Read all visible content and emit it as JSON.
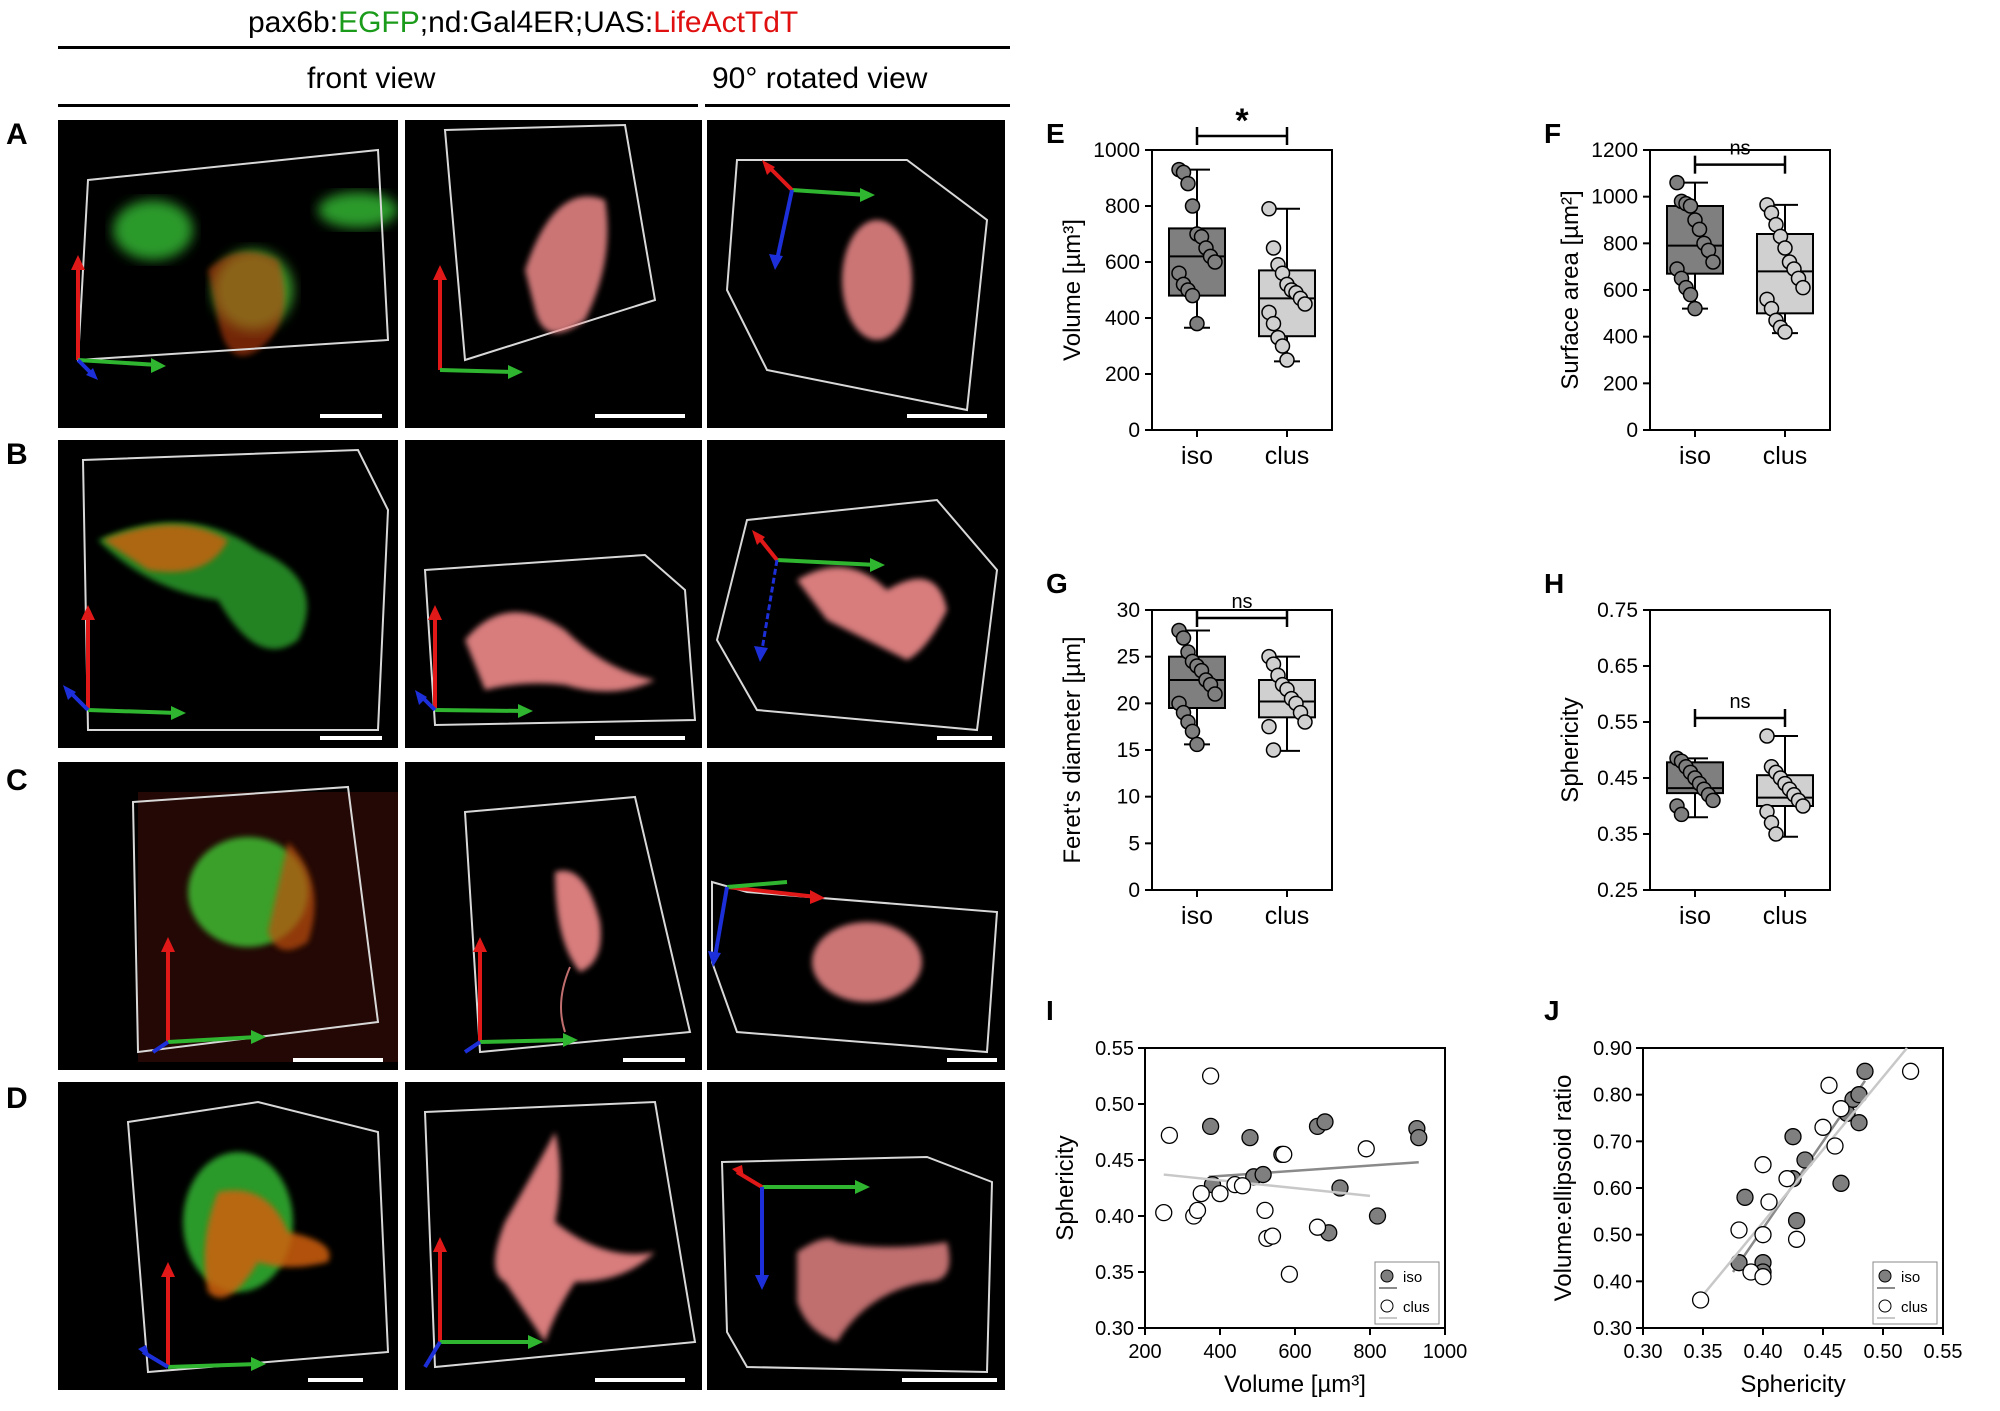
{
  "header": {
    "genotype": {
      "seg1": "pax6b:",
      "seg2": "EGFP",
      "seg3": ";nd:Gal4ER;UAS:",
      "seg4": "LifeActTdT",
      "green_color": "#1a9b1a",
      "red_color": "#e01010"
    },
    "front_view_label": "front view",
    "rotated_view_label": "90° rotated view"
  },
  "rows": [
    {
      "letter": "A"
    },
    {
      "letter": "B"
    },
    {
      "letter": "C"
    },
    {
      "letter": "D"
    }
  ],
  "colors": {
    "iso_fill": "#7f7f7f",
    "clus_fill": "#d0d0d0",
    "axis_red": "#e01818",
    "axis_green": "#2fb52f",
    "axis_blue": "#1c2fd8",
    "egfp_green": "#2a9a2a",
    "tdt_pink": "#f08a8a"
  },
  "chart_data": [
    {
      "letter": "E",
      "type": "box",
      "categories": [
        "iso",
        "clus"
      ],
      "ylabel": "Volume [µm³]",
      "ylim": [
        0,
        1000
      ],
      "yticks": [
        "0",
        "200",
        "400",
        "600",
        "800",
        "1000"
      ],
      "significance": "*",
      "boxes": [
        {
          "q1": 480,
          "median": 620,
          "q3": 720,
          "whisker_low": 365,
          "whisker_high": 930,
          "points": [
            930,
            920,
            880,
            800,
            700,
            690,
            650,
            620,
            600,
            560,
            520,
            500,
            480,
            380
          ]
        },
        {
          "q1": 335,
          "median": 470,
          "q3": 570,
          "whisker_low": 245,
          "whisker_high": 790,
          "points": [
            790,
            650,
            590,
            560,
            520,
            500,
            490,
            470,
            450,
            420,
            380,
            330,
            300,
            250
          ]
        }
      ]
    },
    {
      "letter": "F",
      "type": "box",
      "categories": [
        "iso",
        "clus"
      ],
      "ylabel": "Surface area [µm²]",
      "ylim": [
        0,
        1200
      ],
      "yticks": [
        "0",
        "200",
        "400",
        "600",
        "800",
        "1000",
        "1200"
      ],
      "significance": "ns",
      "boxes": [
        {
          "q1": 670,
          "median": 790,
          "q3": 960,
          "whisker_low": 520,
          "whisker_high": 1060,
          "points": [
            1060,
            980,
            970,
            960,
            900,
            860,
            800,
            770,
            720,
            690,
            650,
            610,
            580,
            520
          ]
        },
        {
          "q1": 500,
          "median": 680,
          "q3": 840,
          "whisker_low": 415,
          "whisker_high": 965,
          "points": [
            965,
            930,
            880,
            830,
            780,
            720,
            690,
            650,
            610,
            560,
            520,
            470,
            440,
            420
          ]
        }
      ]
    },
    {
      "letter": "G",
      "type": "box",
      "categories": [
        "iso",
        "clus"
      ],
      "ylabel": "Feret‘s diameter [µm]",
      "ylim": [
        0,
        30
      ],
      "yticks": [
        "0",
        "5",
        "10",
        "15",
        "20",
        "25",
        "30"
      ],
      "significance": "ns",
      "boxes": [
        {
          "q1": 19.5,
          "median": 22.5,
          "q3": 25,
          "whisker_low": 15.6,
          "whisker_high": 27.8,
          "points": [
            27.8,
            27,
            25.5,
            24.5,
            24,
            23.5,
            22.5,
            22,
            21,
            20,
            19,
            18,
            17,
            15.6
          ]
        },
        {
          "q1": 18.5,
          "median": 20.2,
          "q3": 22.5,
          "whisker_low": 14.9,
          "whisker_high": 25,
          "points": [
            25,
            24.2,
            23,
            22,
            21.5,
            20.5,
            20,
            19,
            18,
            17.5,
            15
          ]
        }
      ]
    },
    {
      "letter": "H",
      "type": "box",
      "categories": [
        "iso",
        "clus"
      ],
      "ylabel": "Sphericity",
      "ylim": [
        0.25,
        0.75
      ],
      "yticks": [
        "0.25",
        "0.35",
        "0.45",
        "0.55",
        "0.65",
        "0.75"
      ],
      "significance": "ns",
      "boxes": [
        {
          "q1": 0.423,
          "median": 0.432,
          "q3": 0.478,
          "whisker_low": 0.38,
          "whisker_high": 0.485,
          "points": [
            0.485,
            0.48,
            0.47,
            0.46,
            0.45,
            0.44,
            0.43,
            0.42,
            0.41,
            0.4,
            0.385
          ]
        },
        {
          "q1": 0.4,
          "median": 0.415,
          "q3": 0.455,
          "whisker_low": 0.345,
          "whisker_high": 0.525,
          "points": [
            0.525,
            0.47,
            0.46,
            0.45,
            0.44,
            0.43,
            0.42,
            0.41,
            0.4,
            0.39,
            0.37,
            0.35
          ]
        }
      ]
    },
    {
      "letter": "I",
      "type": "scatter",
      "xlabel": "Volume [µm³]",
      "ylabel": "Sphericity",
      "xlim": [
        200,
        1000
      ],
      "ylim": [
        0.3,
        0.55
      ],
      "xticks": [
        "200",
        "400",
        "600",
        "800",
        "1000"
      ],
      "yticks": [
        "0.30",
        "0.35",
        "0.40",
        "0.45",
        "0.50",
        "0.55"
      ],
      "legend": [
        "iso",
        "clus"
      ],
      "series": [
        {
          "name": "iso",
          "fit": [
            [
              370,
              0.435
            ],
            [
              930,
              0.448
            ]
          ],
          "points": [
            [
              375,
              0.48
            ],
            [
              380,
              0.428
            ],
            [
              490,
              0.435
            ],
            [
              515,
              0.437
            ],
            [
              565,
              0.455
            ],
            [
              660,
              0.48
            ],
            [
              680,
              0.484
            ],
            [
              690,
              0.385
            ],
            [
              720,
              0.425
            ],
            [
              820,
              0.4
            ],
            [
              925,
              0.478
            ],
            [
              930,
              0.47
            ],
            [
              480,
              0.47
            ]
          ]
        },
        {
          "name": "clus",
          "fit": [
            [
              250,
              0.437
            ],
            [
              800,
              0.418
            ]
          ],
          "points": [
            [
              250,
              0.403
            ],
            [
              265,
              0.472
            ],
            [
              330,
              0.4
            ],
            [
              340,
              0.405
            ],
            [
              350,
              0.42
            ],
            [
              375,
              0.525
            ],
            [
              400,
              0.42
            ],
            [
              440,
              0.428
            ],
            [
              460,
              0.427
            ],
            [
              520,
              0.405
            ],
            [
              525,
              0.38
            ],
            [
              540,
              0.382
            ],
            [
              570,
              0.455
            ],
            [
              585,
              0.348
            ],
            [
              660,
              0.39
            ],
            [
              790,
              0.46
            ]
          ]
        }
      ]
    },
    {
      "letter": "J",
      "type": "scatter",
      "xlabel": "Sphericity",
      "ylabel": "Volume:ellipsoid ratio",
      "xlim": [
        0.3,
        0.55
      ],
      "ylim": [
        0.3,
        0.9
      ],
      "xticks": [
        "0.30",
        "0.35",
        "0.40",
        "0.45",
        "0.50",
        "0.55"
      ],
      "yticks": [
        "0.30",
        "0.40",
        "0.50",
        "0.60",
        "0.70",
        "0.80",
        "0.90"
      ],
      "legend": [
        "iso",
        "clus"
      ],
      "series": [
        {
          "name": "iso",
          "fit": [
            [
              0.375,
              0.42
            ],
            [
              0.485,
              0.83
            ]
          ],
          "points": [
            [
              0.38,
              0.44
            ],
            [
              0.385,
              0.58
            ],
            [
              0.4,
              0.44
            ],
            [
              0.4,
              0.42
            ],
            [
              0.425,
              0.62
            ],
            [
              0.425,
              0.71
            ],
            [
              0.428,
              0.53
            ],
            [
              0.435,
              0.66
            ],
            [
              0.465,
              0.61
            ],
            [
              0.47,
              0.76
            ],
            [
              0.475,
              0.79
            ],
            [
              0.48,
              0.8
            ],
            [
              0.48,
              0.74
            ],
            [
              0.485,
              0.85
            ]
          ]
        },
        {
          "name": "clus",
          "fit": [
            [
              0.345,
              0.355
            ],
            [
              0.52,
              0.9
            ]
          ],
          "points": [
            [
              0.348,
              0.36
            ],
            [
              0.38,
              0.51
            ],
            [
              0.39,
              0.42
            ],
            [
              0.4,
              0.5
            ],
            [
              0.4,
              0.41
            ],
            [
              0.4,
              0.65
            ],
            [
              0.405,
              0.57
            ],
            [
              0.42,
              0.62
            ],
            [
              0.428,
              0.49
            ],
            [
              0.45,
              0.73
            ],
            [
              0.455,
              0.82
            ],
            [
              0.46,
              0.69
            ],
            [
              0.465,
              0.77
            ],
            [
              0.523,
              0.85
            ]
          ]
        }
      ]
    }
  ]
}
